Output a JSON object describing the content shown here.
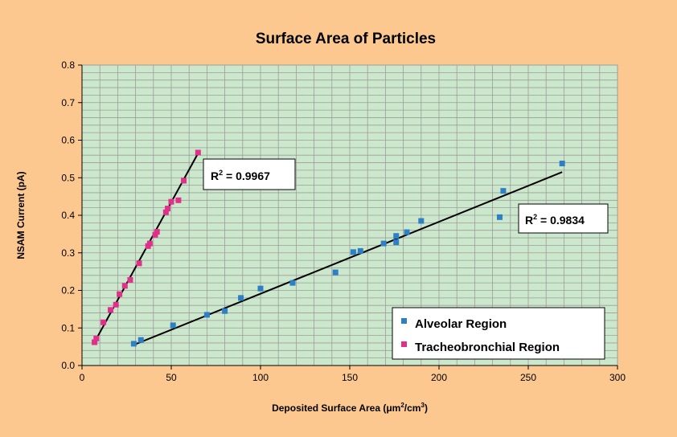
{
  "chart_data": {
    "type": "scatter",
    "title": "Surface Area of Particles",
    "xlabel": "Deposited Surface Area (",
    "xlabel_unit": "μm",
    "xlabel_sup1": "2",
    "xlabel_unit2": "/cm",
    "xlabel_sup2": "3",
    "xlabel_close": ")",
    "ylabel": "NSAM Current (pA)",
    "xlim": [
      0,
      300
    ],
    "ylim": [
      0,
      0.8
    ],
    "x_ticks": [
      0,
      50,
      100,
      150,
      200,
      250,
      300
    ],
    "y_ticks": [
      0.0,
      0.1,
      0.2,
      0.3,
      0.4,
      0.5,
      0.6,
      0.7,
      0.8
    ],
    "x_tick_labels": [
      "0",
      "50",
      "100",
      "150",
      "200",
      "250",
      "300"
    ],
    "y_tick_labels": [
      "0.0",
      "0.1",
      "0.2",
      "0.3",
      "0.4",
      "0.5",
      "0.6",
      "0.7",
      "0.8"
    ],
    "grid": true,
    "legend_position": "bottom-right",
    "colors": {
      "background": "#FCC88F",
      "plot_area": "#CCE8CC",
      "grid": "#9C9C9C",
      "alveolar": "#2F7FC7",
      "tracheobronchial": "#E0308A",
      "trendline": "#000000"
    },
    "series": [
      {
        "name": "Alveolar Region",
        "points": [
          [
            29,
            0.058
          ],
          [
            33,
            0.068
          ],
          [
            51,
            0.107
          ],
          [
            70,
            0.135
          ],
          [
            80,
            0.145
          ],
          [
            89,
            0.18
          ],
          [
            100,
            0.205
          ],
          [
            118,
            0.22
          ],
          [
            142,
            0.248
          ],
          [
            152,
            0.302
          ],
          [
            156,
            0.305
          ],
          [
            169,
            0.325
          ],
          [
            176,
            0.328
          ],
          [
            176,
            0.345
          ],
          [
            182,
            0.355
          ],
          [
            190,
            0.385
          ],
          [
            234,
            0.395
          ],
          [
            236,
            0.465
          ],
          [
            269,
            0.538
          ]
        ],
        "trendline": {
          "x": [
            29,
            269
          ],
          "y": [
            0.055,
            0.515
          ]
        },
        "r_squared_label": "R",
        "r_squared_sup": "2",
        "r_squared_value": " = 0.9834"
      },
      {
        "name": "Tracheobronchial Region",
        "points": [
          [
            7,
            0.062
          ],
          [
            8,
            0.072
          ],
          [
            12,
            0.115
          ],
          [
            16,
            0.148
          ],
          [
            19,
            0.162
          ],
          [
            21,
            0.19
          ],
          [
            24,
            0.212
          ],
          [
            27,
            0.228
          ],
          [
            32,
            0.272
          ],
          [
            37,
            0.318
          ],
          [
            38,
            0.325
          ],
          [
            41,
            0.348
          ],
          [
            42,
            0.356
          ],
          [
            47,
            0.408
          ],
          [
            48,
            0.418
          ],
          [
            50,
            0.436
          ],
          [
            54,
            0.44
          ],
          [
            57,
            0.492
          ],
          [
            65,
            0.567
          ]
        ],
        "trendline": {
          "x": [
            7,
            65
          ],
          "y": [
            0.062,
            0.565
          ]
        },
        "r_squared_label": "R",
        "r_squared_sup": "2",
        "r_squared_value": " = 0.9967"
      }
    ]
  }
}
